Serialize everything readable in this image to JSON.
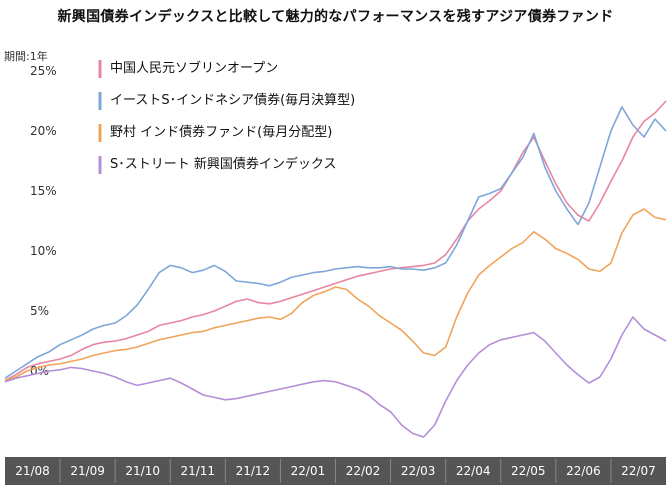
{
  "chart_data": {
    "type": "line",
    "title": "新興国債券インデックスと比較して魅力的なパフォーマンスを残すアジア債券ファンド",
    "period_label": "期間:1年",
    "ylabel": "",
    "xlabel": "",
    "ylim": [
      -7,
      27
    ],
    "y_ticks": [
      "0%",
      "5%",
      "10%",
      "15%",
      "20%",
      "25%"
    ],
    "y_tick_values": [
      0,
      5,
      10,
      15,
      20,
      25
    ],
    "x_ticks": [
      "21/08",
      "21/09",
      "21/10",
      "21/11",
      "21/12",
      "22/01",
      "22/02",
      "22/03",
      "22/04",
      "22/05",
      "22/06",
      "22/07"
    ],
    "x_count": 61,
    "grid": false,
    "legend_position": "top-left",
    "series": [
      {
        "name": "中国人民元ソブリンオープン",
        "color": "#e8859f",
        "values": [
          -0.8,
          -0.3,
          0.3,
          0.6,
          0.8,
          1.0,
          1.3,
          1.8,
          2.2,
          2.4,
          2.5,
          2.7,
          3.0,
          3.3,
          3.8,
          4.0,
          4.2,
          4.5,
          4.7,
          5.0,
          5.4,
          5.8,
          6.0,
          5.7,
          5.6,
          5.8,
          6.1,
          6.4,
          6.7,
          7.0,
          7.3,
          7.6,
          7.9,
          8.1,
          8.3,
          8.5,
          8.6,
          8.7,
          8.8,
          9.0,
          9.7,
          11.0,
          12.5,
          13.5,
          14.2,
          15.0,
          16.5,
          18.2,
          19.5,
          17.5,
          15.6,
          14.0,
          13.0,
          12.5,
          14.0,
          15.8,
          17.5,
          19.5,
          20.8,
          21.5,
          22.5
        ]
      },
      {
        "name": "イーストS･インドネシア債券(毎月決算型)",
        "color": "#7ea6d8",
        "values": [
          -0.6,
          0.0,
          0.6,
          1.2,
          1.6,
          2.2,
          2.6,
          3.0,
          3.5,
          3.8,
          4.0,
          4.6,
          5.5,
          6.8,
          8.2,
          8.8,
          8.6,
          8.2,
          8.4,
          8.8,
          8.3,
          7.5,
          7.4,
          7.3,
          7.1,
          7.4,
          7.8,
          8.0,
          8.2,
          8.3,
          8.5,
          8.6,
          8.7,
          8.6,
          8.6,
          8.7,
          8.5,
          8.5,
          8.4,
          8.6,
          9.0,
          10.5,
          12.5,
          14.5,
          14.8,
          15.2,
          16.5,
          17.8,
          19.8,
          17.0,
          15.0,
          13.5,
          12.2,
          14.0,
          17.0,
          20.0,
          22.0,
          20.5,
          19.5,
          21.0,
          20.0
        ]
      },
      {
        "name": "野村 インド債券ファンド(毎月分配型)",
        "color": "#f0a45a",
        "values": [
          -0.8,
          -0.5,
          0.0,
          0.3,
          0.5,
          0.6,
          0.8,
          1.0,
          1.3,
          1.5,
          1.7,
          1.8,
          2.0,
          2.3,
          2.6,
          2.8,
          3.0,
          3.2,
          3.3,
          3.6,
          3.8,
          4.0,
          4.2,
          4.4,
          4.5,
          4.3,
          4.8,
          5.7,
          6.3,
          6.6,
          7.0,
          6.8,
          6.0,
          5.4,
          4.6,
          4.0,
          3.4,
          2.5,
          1.5,
          1.3,
          2.0,
          4.5,
          6.5,
          8.0,
          8.8,
          9.5,
          10.2,
          10.7,
          11.6,
          11.0,
          10.2,
          9.8,
          9.3,
          8.5,
          8.3,
          9.0,
          11.5,
          13.0,
          13.5,
          12.8,
          12.6
        ]
      },
      {
        "name": "S･ストリート 新興国債券インデックス",
        "color": "#b48ed8",
        "values": [
          -0.9,
          -0.6,
          -0.4,
          -0.2,
          0.0,
          0.1,
          0.3,
          0.2,
          0.0,
          -0.2,
          -0.5,
          -0.9,
          -1.2,
          -1.0,
          -0.8,
          -0.6,
          -1.0,
          -1.5,
          -2.0,
          -2.2,
          -2.4,
          -2.3,
          -2.1,
          -1.9,
          -1.7,
          -1.5,
          -1.3,
          -1.1,
          -0.9,
          -0.8,
          -0.9,
          -1.2,
          -1.5,
          -2.0,
          -2.8,
          -3.4,
          -4.5,
          -5.2,
          -5.5,
          -4.5,
          -2.5,
          -0.8,
          0.5,
          1.5,
          2.2,
          2.6,
          2.8,
          3.0,
          3.2,
          2.5,
          1.5,
          0.5,
          -0.3,
          -1.0,
          -0.5,
          1.0,
          3.0,
          4.5,
          3.5,
          3.0,
          2.5
        ]
      }
    ]
  }
}
